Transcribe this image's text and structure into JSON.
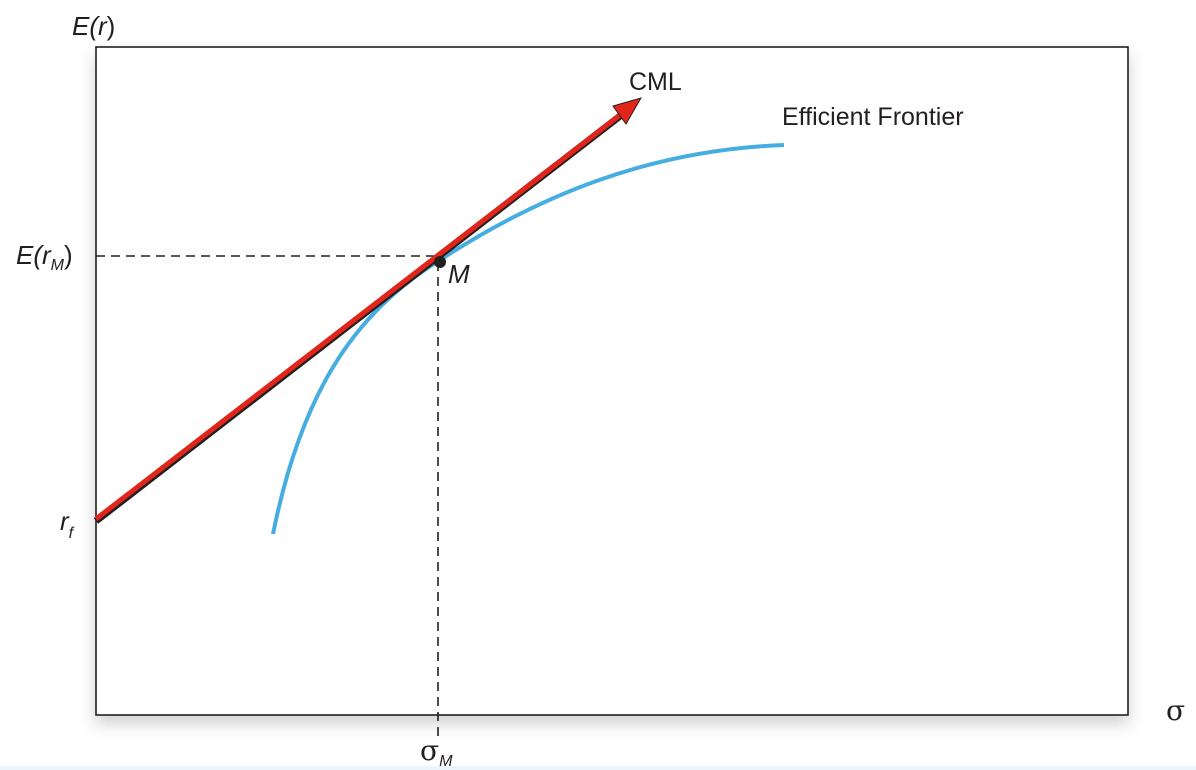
{
  "diagram": {
    "y_axis_label": {
      "prefix": "E(",
      "var": "r",
      "suffix": ")"
    },
    "x_axis_label": "σ",
    "tick_market_return": {
      "prefix": "E(",
      "var": "r",
      "sub": "M",
      "suffix": ")"
    },
    "tick_risk_free": {
      "var": "r",
      "sub": "f"
    },
    "tick_market_sd": {
      "var": "σ",
      "sub": "M"
    },
    "point_label": "M",
    "line_label": "CML",
    "curve_label": "Efficient Frontier",
    "colors": {
      "cml": "#e1251b",
      "frontier": "#46ade1",
      "axes": "#231f20",
      "guides": "#231f20",
      "panel_shadow": "#d9dadb"
    }
  }
}
